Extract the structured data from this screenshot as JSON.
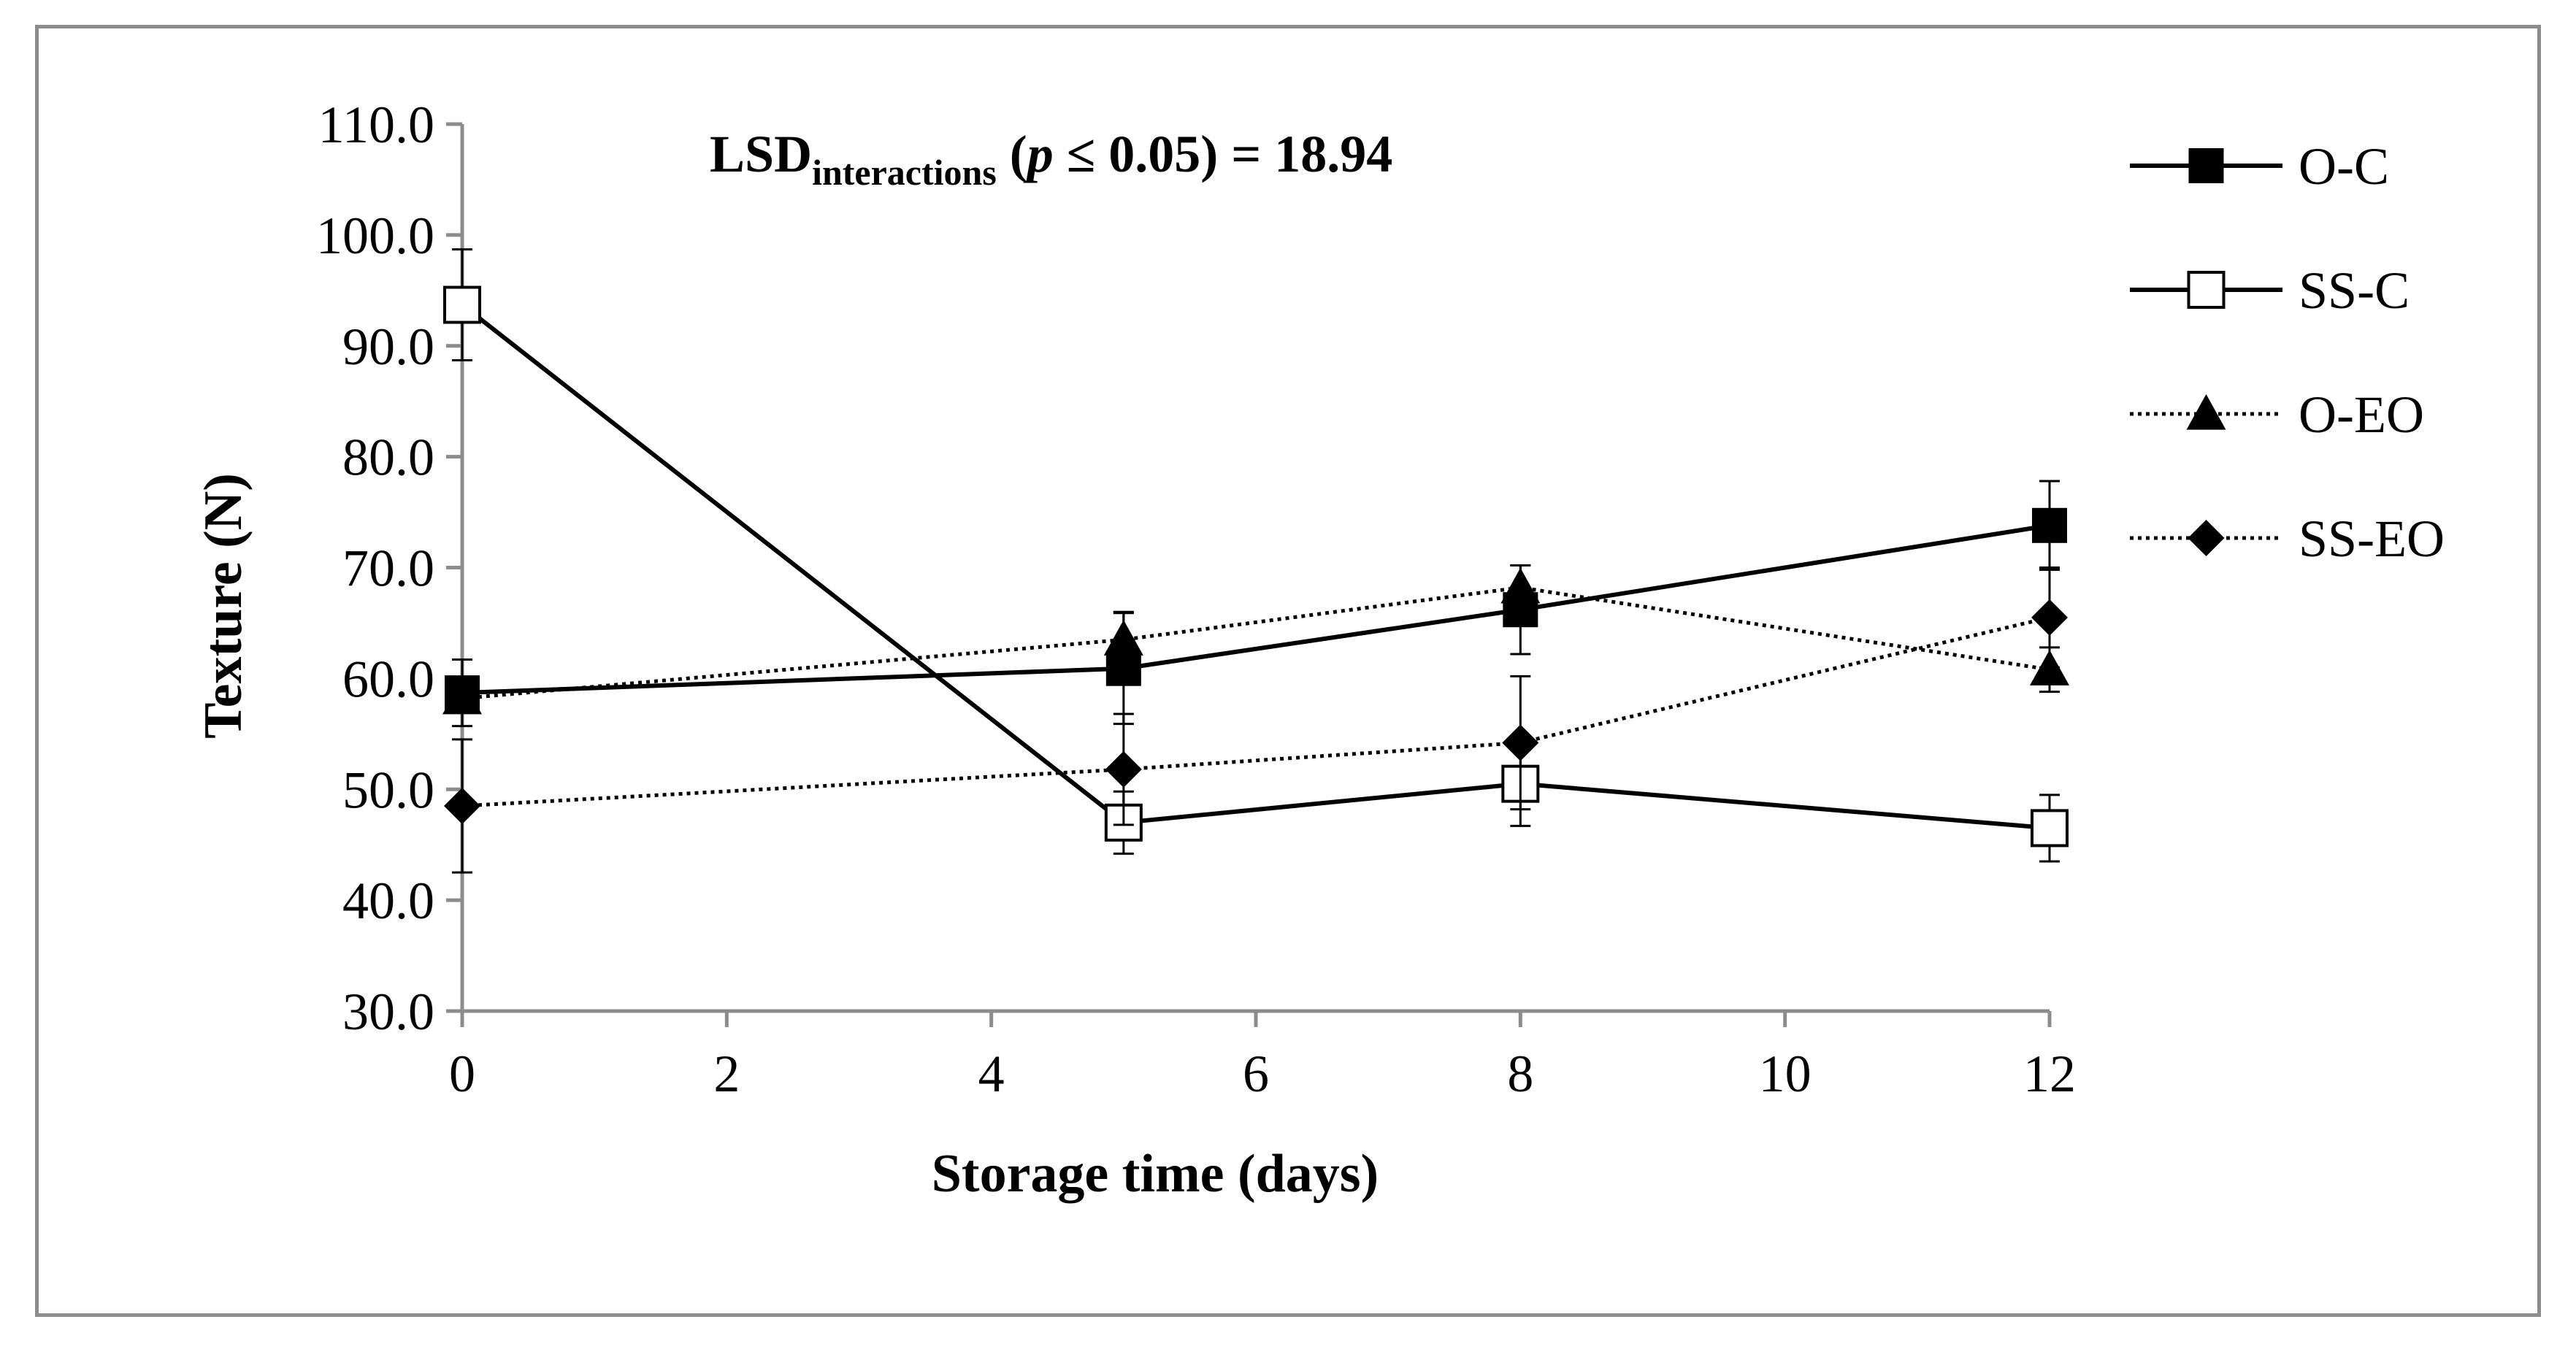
{
  "chart_data": {
    "type": "line",
    "xlabel": "Storage time (days)",
    "ylabel": "Texture (N)",
    "xlim": [
      0,
      12
    ],
    "ylim": [
      30,
      110
    ],
    "xticks": [
      0,
      2,
      4,
      6,
      8,
      10,
      12
    ],
    "xtick_labels": [
      "0",
      "2",
      "4",
      "6",
      "8",
      "10",
      "12"
    ],
    "yticks": [
      30,
      40,
      50,
      60,
      70,
      80,
      90,
      100,
      110
    ],
    "ytick_labels": [
      "30.0",
      "40.0",
      "50.0",
      "60.0",
      "70.0",
      "80.0",
      "90.0",
      "100.0",
      "110.0"
    ],
    "grid": false,
    "legend_position": "right",
    "annotation": {
      "lsd_prefix": "LSD",
      "lsd_subscript": "interactions",
      "open_paren": " (",
      "p_symbol": "p",
      "p_condition": " ≤ 0.05) = 18.94"
    },
    "x": [
      0,
      5,
      8,
      12
    ],
    "series": [
      {
        "name": "O-C",
        "marker": "square-filled",
        "line_style": "solid",
        "values": [
          58.7,
          60.9,
          66.2,
          73.8
        ],
        "errors": [
          3.0,
          5.0,
          4.0,
          4.0
        ]
      },
      {
        "name": "SS-C",
        "marker": "square-open",
        "line_style": "solid",
        "values": [
          93.7,
          47.0,
          50.5,
          46.5
        ],
        "errors": [
          5.0,
          2.8,
          3.8,
          3.0
        ]
      },
      {
        "name": "O-EO",
        "marker": "triangle-filled",
        "line_style": "dotted",
        "values": [
          58.2,
          63.5,
          68.2,
          60.8
        ],
        "errors": [
          0.0,
          2.5,
          2.0,
          2.0
        ]
      },
      {
        "name": "SS-EO",
        "marker": "diamond-filled",
        "line_style": "dotted",
        "values": [
          48.5,
          51.8,
          54.2,
          65.5
        ],
        "errors": [
          6.0,
          5.0,
          6.0,
          4.5
        ]
      }
    ]
  }
}
